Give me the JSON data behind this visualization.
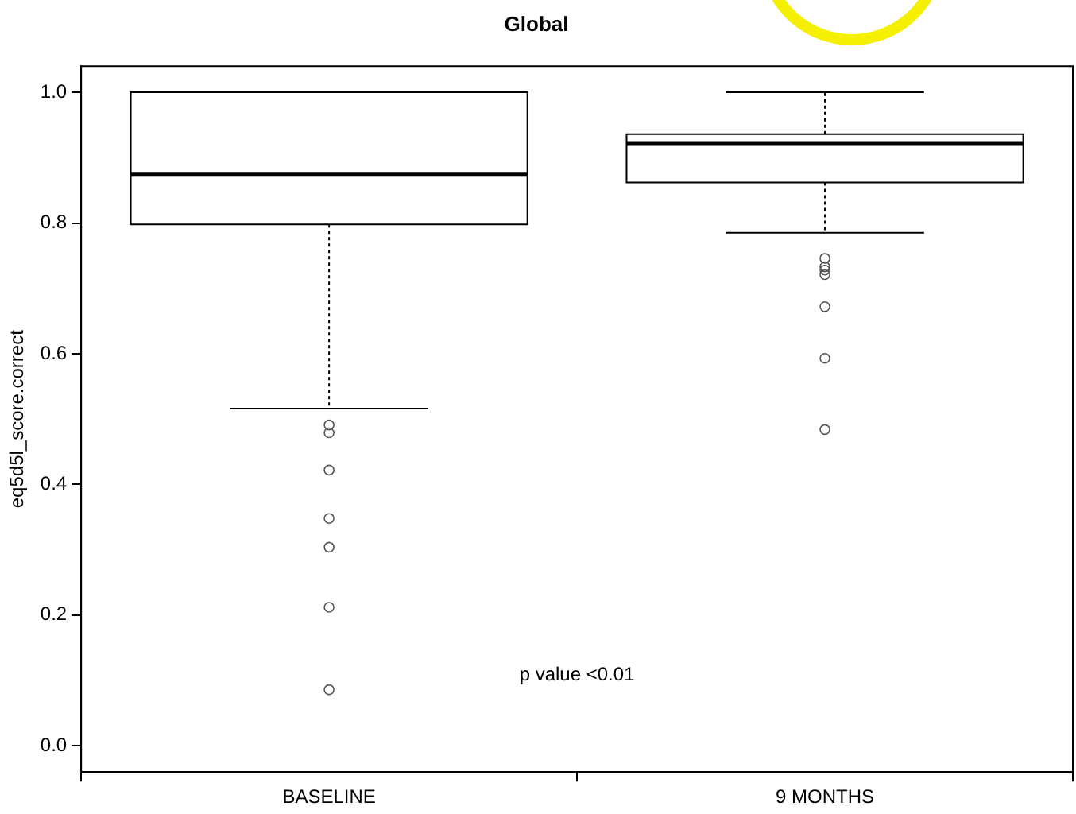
{
  "chart_data": {
    "type": "box",
    "title": "Global",
    "ylabel": "eq5d5l_score.correct",
    "categories": [
      "BASELINE",
      "9 MONTHS"
    ],
    "boxes": [
      {
        "low": 0.516,
        "q1": 0.798,
        "median": 0.874,
        "q3": 1.0,
        "high": 1.0,
        "outliers": [
          0.491,
          0.479,
          0.422,
          0.348,
          0.304,
          0.212,
          0.086
        ]
      },
      {
        "low": 0.785,
        "q1": 0.862,
        "median": 0.921,
        "q3": 0.936,
        "high": 1.0,
        "outliers": [
          0.746,
          0.733,
          0.728,
          0.721,
          0.672,
          0.593,
          0.484
        ]
      }
    ],
    "ylim": [
      -0.04,
      1.04
    ],
    "yticks": [
      {
        "value": 0,
        "label": "0.0"
      },
      0.2,
      0.4,
      0.6,
      0.8,
      {
        "value": 1,
        "label": "1.0"
      }
    ],
    "annotations": [
      "p value <0.01"
    ],
    "grid": false,
    "legend": false
  }
}
